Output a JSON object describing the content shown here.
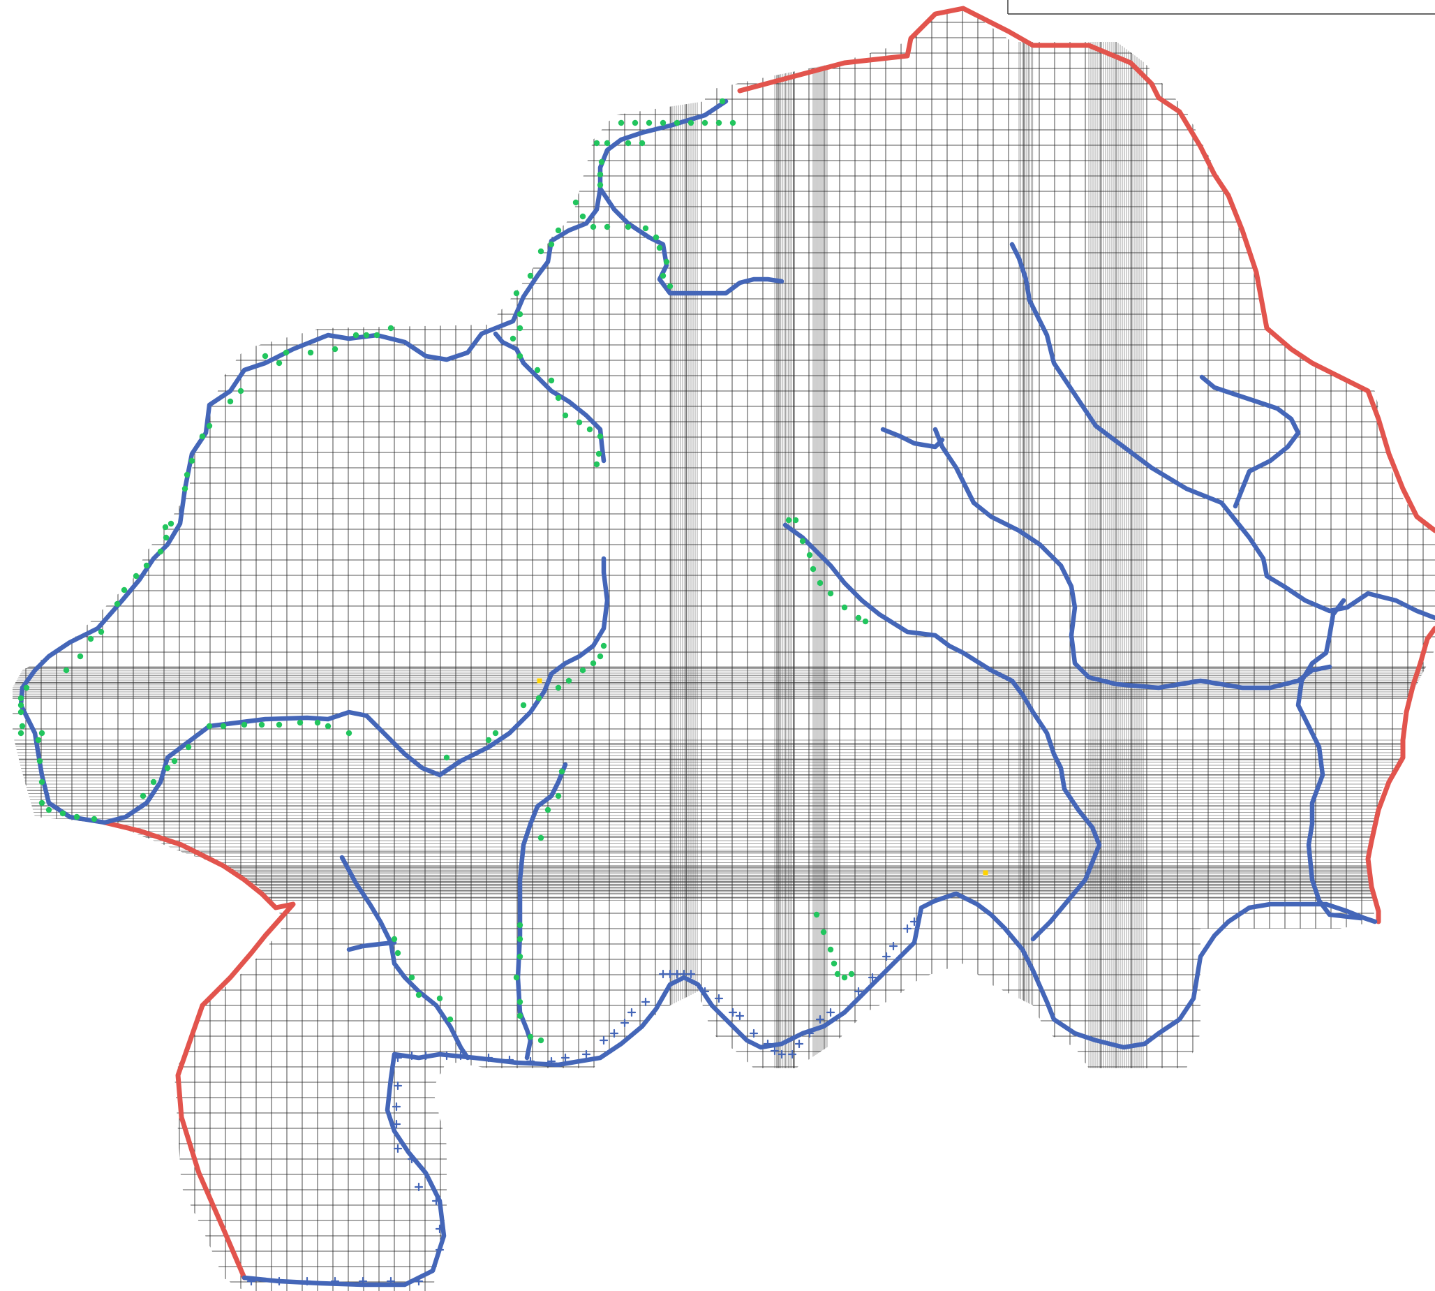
{
  "map": {
    "colors": {
      "boundary": "#e2544d",
      "river": "#4466b8",
      "river_cell_marker": "#22c55e",
      "boundary_cell_marker": "#4466b8",
      "observation_point": "#ffd400",
      "grid": "#1a1a1a",
      "background": "#ffffff"
    },
    "icons": {
      "river_cell_marker": "green-circle-icon",
      "boundary_cell_marker": "blue-plus-icon",
      "observation_point": "yellow-square-icon"
    }
  }
}
